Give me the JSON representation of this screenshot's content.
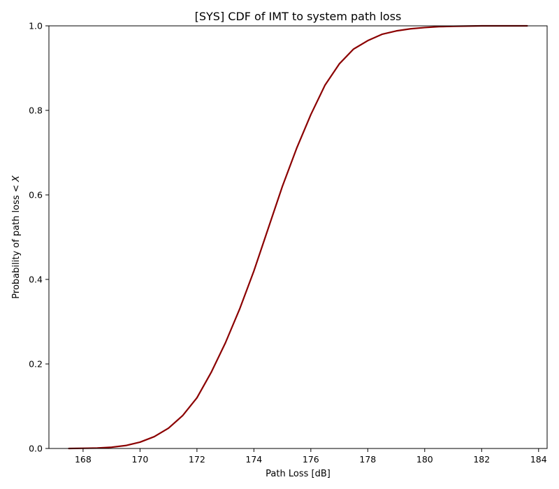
{
  "chart_data": {
    "type": "line",
    "title": "[SYS] CDF of IMT to system path loss",
    "xlabel": "Path Loss [dB]",
    "ylabel_prefix": "Probability of path loss < ",
    "ylabel_var": "X",
    "xlim": [
      166.8,
      184.3
    ],
    "ylim": [
      0.0,
      1.0
    ],
    "xticks": [
      168,
      170,
      172,
      174,
      176,
      178,
      180,
      182,
      184
    ],
    "yticks": [
      0.0,
      0.2,
      0.4,
      0.6,
      0.8,
      1.0
    ],
    "grid": false,
    "series": [
      {
        "color": "#8b0000",
        "x": [
          167.5,
          168.0,
          168.5,
          169.0,
          169.5,
          170.0,
          170.5,
          171.0,
          171.5,
          172.0,
          172.5,
          173.0,
          173.5,
          174.0,
          174.5,
          175.0,
          175.5,
          176.0,
          176.5,
          177.0,
          177.5,
          178.0,
          178.5,
          179.0,
          179.5,
          180.0,
          180.5,
          181.0,
          182.0,
          183.0,
          183.6
        ],
        "y": [
          0.0,
          0.0005,
          0.001,
          0.003,
          0.007,
          0.015,
          0.028,
          0.048,
          0.078,
          0.12,
          0.18,
          0.25,
          0.33,
          0.42,
          0.52,
          0.62,
          0.71,
          0.79,
          0.86,
          0.91,
          0.945,
          0.965,
          0.98,
          0.988,
          0.993,
          0.996,
          0.998,
          0.999,
          1.0,
          1.0,
          1.0
        ]
      }
    ]
  }
}
